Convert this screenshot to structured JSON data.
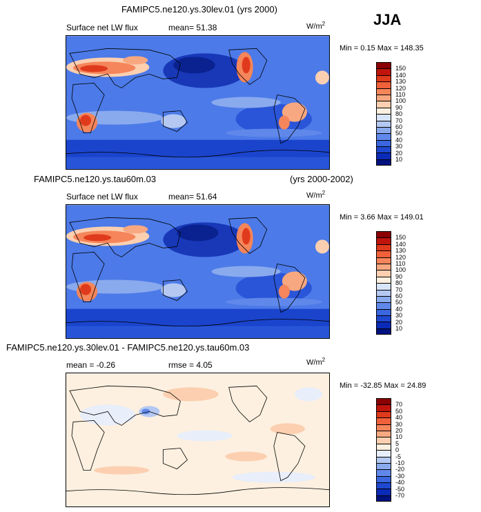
{
  "season": "JJA",
  "panels": [
    {
      "title": "FAMIPC5.ne120.ys.30lev.01 (yrs 2000)",
      "title_right": "",
      "subtitle_left": "Surface net LW flux",
      "subtitle_stat": "mean=  51.38",
      "units": "W/m",
      "units_exp": "2",
      "minmax": "Min =   0.15 Max = 148.35",
      "type": "field"
    },
    {
      "title": "FAMIPC5.ne120.ys.tau60m.03",
      "title_right": "(yrs 2000-2002)",
      "subtitle_left": "Surface net LW flux",
      "subtitle_stat": "mean=  51.64",
      "units": "W/m",
      "units_exp": "2",
      "minmax": "Min =   3.66 Max = 149.01",
      "type": "field"
    },
    {
      "title": "FAMIPC5.ne120.ys.30lev.01 - FAMIPC5.ne120.ys.tau60m.03",
      "title_right": "",
      "subtitle_left": "mean =  -0.26",
      "subtitle_stat": "rmse =   4.05",
      "units": "W/m",
      "units_exp": "2",
      "minmax": "Min = -32.85 Max =  24.89",
      "type": "diff"
    }
  ],
  "colorbar_field": {
    "labels": [
      "150",
      "140",
      "130",
      "120",
      "110",
      "100",
      "90",
      "80",
      "70",
      "60",
      "50",
      "40",
      "30",
      "20",
      "10"
    ],
    "colors": [
      "#8b0000",
      "#c0150c",
      "#e03a1c",
      "#f0603a",
      "#f5855a",
      "#f8a880",
      "#fbcfb0",
      "#fdf0e0",
      "#d8e4f8",
      "#b4c8f2",
      "#8aaaee",
      "#6088ea",
      "#3a66e0",
      "#1f48d0",
      "#0a2ab8",
      "#00127f"
    ]
  },
  "colorbar_diff": {
    "labels": [
      "70",
      "50",
      "40",
      "30",
      "20",
      "10",
      "5",
      "0",
      "-5",
      "-10",
      "-20",
      "-30",
      "-40",
      "-50",
      "-70"
    ],
    "colors": [
      "#8b0000",
      "#c0150c",
      "#e03a1c",
      "#f0603a",
      "#f5855a",
      "#f8a880",
      "#fbcfb0",
      "#fdf0e0",
      "#e8eefa",
      "#b4c8f2",
      "#8aaaee",
      "#6088ea",
      "#3a66e0",
      "#1f48d0",
      "#0a2ab8",
      "#00127f"
    ]
  }
}
